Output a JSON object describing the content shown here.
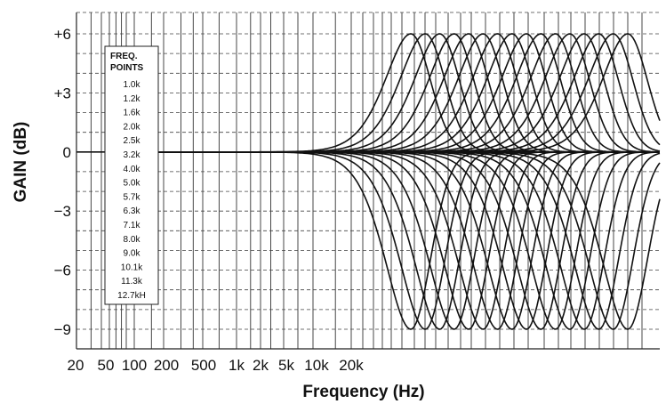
{
  "chart_data": {
    "type": "line",
    "title": "",
    "xlabel": "Frequency (Hz)",
    "ylabel": "GAIN (dB)",
    "xscale": "log",
    "ylim": [
      -9,
      6
    ],
    "x_tick_labels": [
      "20",
      "50",
      "100",
      "200",
      "500",
      "1k",
      "2k",
      "5k",
      "10k",
      "20k"
    ],
    "y_ticks": [
      6,
      3,
      0,
      -3,
      -6,
      -9
    ],
    "y_tick_labels": [
      "+6",
      "+3",
      "0",
      "−3",
      "−6",
      "−9"
    ],
    "grid": true,
    "legend": {
      "placement": "left",
      "title_lines": [
        "FREQ.",
        "POINTS"
      ],
      "items": [
        "1.0k",
        "1.2k",
        "1.6k",
        "2.0k",
        "2.5k",
        "3.2k",
        "4.0k",
        "5.0k",
        "5.7k",
        "6.3k",
        "7.1k",
        "8.0k",
        "9.0k",
        "10.1k",
        "11.3k",
        "12.7kH"
      ]
    },
    "series_description": "parametric EQ response curves, one boost (+6 dB) and one cut (-9 dB) per frequency point",
    "center_frequencies_hz": [
      1000,
      1200,
      1600,
      2000,
      2500,
      3200,
      4000,
      5000,
      5700,
      6300,
      7100,
      8000,
      9000,
      10100,
      11300,
      12700
    ],
    "boost_db": 6,
    "cut_db": -9
  }
}
